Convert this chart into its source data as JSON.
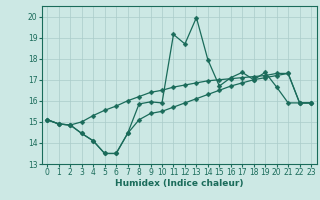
{
  "bg_color": "#cce8e4",
  "grid_color": "#aaccca",
  "line_color": "#1a6b5a",
  "xlabel": "Humidex (Indice chaleur)",
  "xlim": [
    -0.5,
    23.5
  ],
  "ylim": [
    13,
    20.5
  ],
  "yticks": [
    13,
    14,
    15,
    16,
    17,
    18,
    19,
    20
  ],
  "xticks": [
    0,
    1,
    2,
    3,
    4,
    5,
    6,
    7,
    8,
    9,
    10,
    11,
    12,
    13,
    14,
    15,
    16,
    17,
    18,
    19,
    20,
    21,
    22,
    23
  ],
  "line1_x": [
    0,
    1,
    2,
    3,
    4,
    5,
    6,
    7,
    8,
    9,
    10,
    11,
    12,
    13,
    14,
    15,
    16,
    17,
    18,
    19,
    20,
    21,
    22,
    23
  ],
  "line1_y": [
    15.1,
    14.9,
    14.85,
    14.45,
    14.1,
    13.5,
    13.5,
    14.45,
    15.85,
    15.95,
    15.9,
    19.15,
    18.7,
    19.95,
    17.95,
    16.7,
    17.1,
    17.35,
    17.0,
    17.35,
    16.65,
    15.9,
    15.9,
    15.9
  ],
  "line2_x": [
    0,
    1,
    2,
    3,
    4,
    5,
    6,
    7,
    8,
    9,
    10,
    11,
    12,
    13,
    14,
    15,
    16,
    17,
    18,
    19,
    20,
    21,
    22,
    23
  ],
  "line2_y": [
    15.1,
    14.9,
    14.85,
    15.0,
    15.3,
    15.55,
    15.75,
    16.0,
    16.2,
    16.4,
    16.5,
    16.65,
    16.75,
    16.85,
    16.95,
    17.0,
    17.05,
    17.1,
    17.15,
    17.2,
    17.3,
    17.3,
    15.9,
    15.9
  ],
  "line3_x": [
    0,
    1,
    2,
    3,
    4,
    5,
    6,
    7,
    8,
    9,
    10,
    11,
    12,
    13,
    14,
    15,
    16,
    17,
    18,
    19,
    20,
    21,
    22,
    23
  ],
  "line3_y": [
    15.1,
    14.9,
    14.85,
    14.45,
    14.1,
    13.5,
    13.5,
    14.45,
    15.1,
    15.4,
    15.5,
    15.7,
    15.9,
    16.1,
    16.3,
    16.5,
    16.7,
    16.85,
    17.0,
    17.1,
    17.2,
    17.3,
    15.9,
    15.9
  ],
  "marker_size": 2.5,
  "lw": 0.9,
  "tick_fontsize": 5.5,
  "xlabel_fontsize": 6.5
}
